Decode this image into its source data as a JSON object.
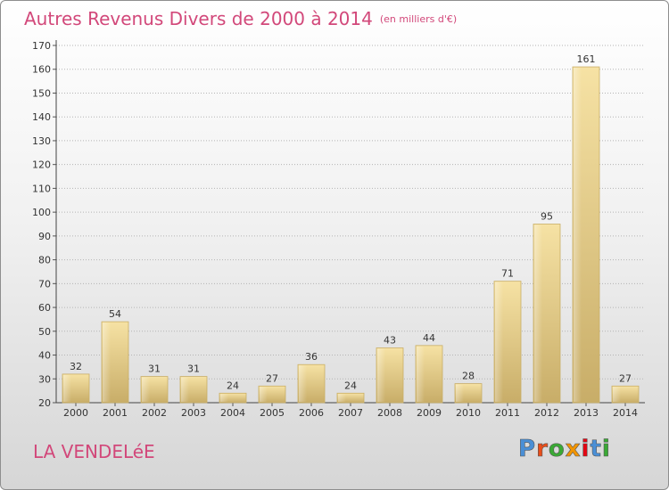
{
  "title": "Autres Revenus Divers de 2000 à 2014",
  "unit_note": "(en milliers d'€)",
  "town": "LA VENDELéE",
  "logo": {
    "text": "Proxiti",
    "colors": [
      "#4a8fd6",
      "#e94e1b",
      "#3aa935",
      "#f29400",
      "#e30613",
      "#4a8fd6",
      "#3aa935"
    ]
  },
  "chart_data": {
    "type": "bar",
    "categories": [
      "2000",
      "2001",
      "2002",
      "2003",
      "2004",
      "2005",
      "2006",
      "2007",
      "2008",
      "2009",
      "2010",
      "2011",
      "2012",
      "2013",
      "2014"
    ],
    "values": [
      32,
      54,
      31,
      31,
      24,
      27,
      36,
      24,
      43,
      44,
      28,
      71,
      95,
      161,
      27
    ],
    "ylim": [
      20,
      170
    ],
    "yticks": [
      20,
      30,
      40,
      50,
      60,
      70,
      80,
      90,
      100,
      110,
      120,
      130,
      140,
      150,
      160,
      170
    ],
    "grid": true,
    "bar_color": "#e8cf88"
  }
}
